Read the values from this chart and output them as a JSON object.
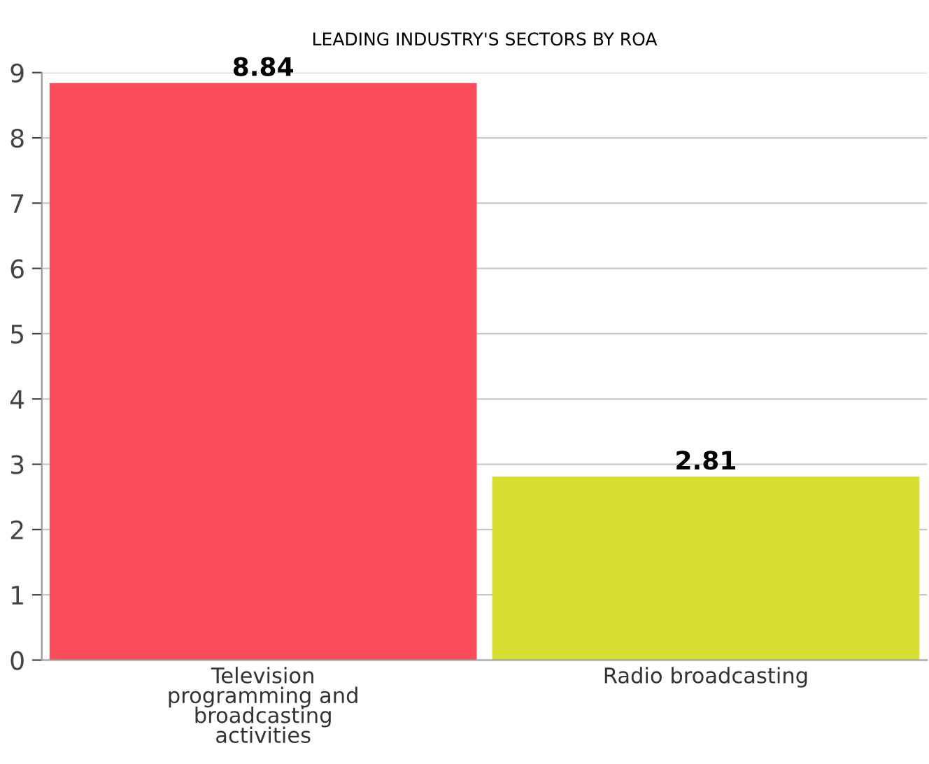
{
  "chart_data": {
    "type": "bar",
    "title": "LEADING INDUSTRY'S SECTORS BY ROA",
    "categories": [
      "Television\nprogramming and\nbroadcasting\nactivities",
      "Radio broadcasting"
    ],
    "values": [
      8.84,
      2.81
    ],
    "colors": [
      "#fb4c5a",
      "#d9df32"
    ],
    "ylim": [
      0,
      9
    ],
    "yticks": [
      0,
      1,
      2,
      3,
      4,
      5,
      6,
      7,
      8,
      9
    ],
    "grid": "y",
    "data_labels": true
  }
}
